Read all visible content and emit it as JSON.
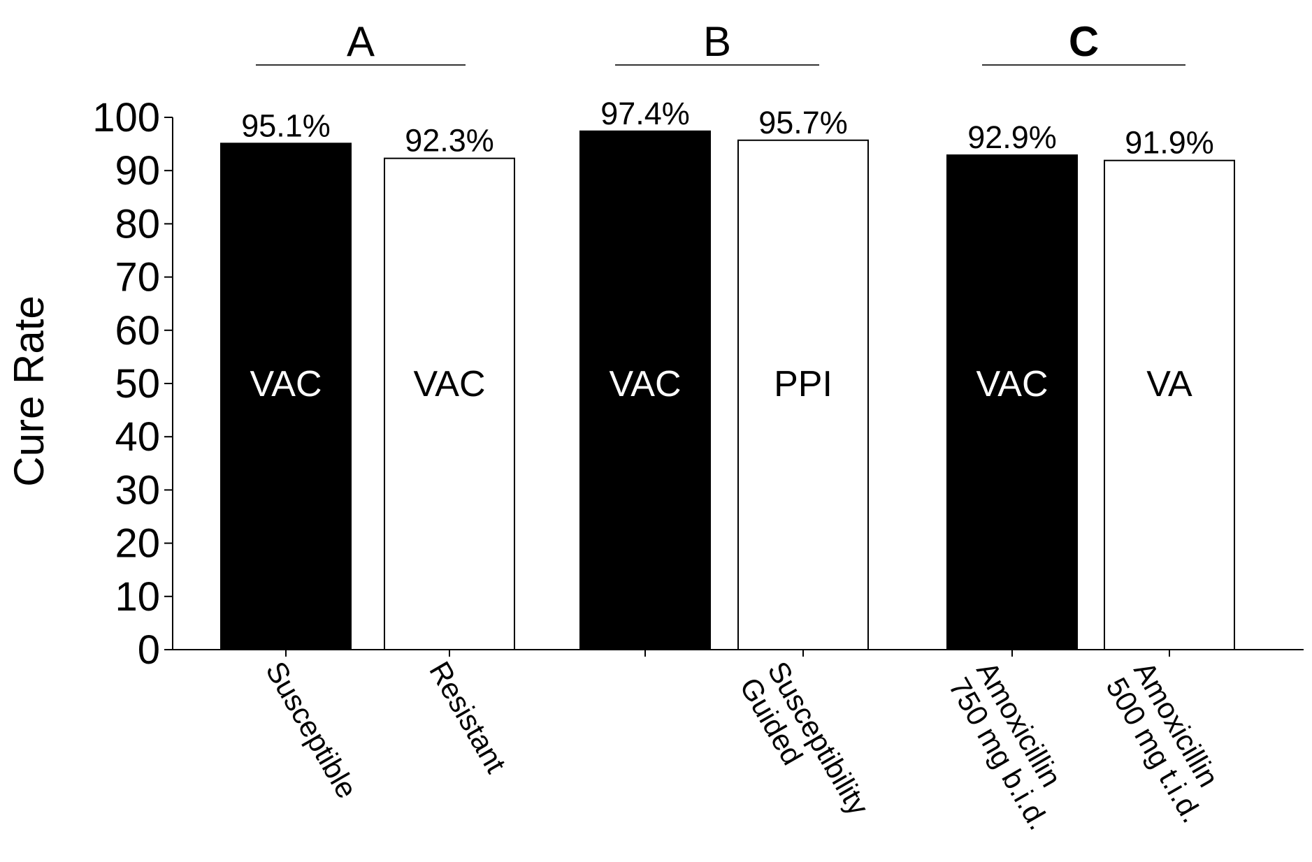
{
  "chart_data": {
    "type": "bar",
    "y_label": "Cure Rate",
    "groups": [
      {
        "label": "A",
        "from": 0,
        "to": 1
      },
      {
        "label": "B",
        "from": 2,
        "to": 3
      },
      {
        "label": "C",
        "from": 4,
        "to": 5
      }
    ],
    "categories": [
      [
        "Susceptible"
      ],
      [
        "Resistant"
      ],
      null,
      [
        "Susceptibility",
        "Guided"
      ],
      [
        "Amoxicillin",
        "750 mg b.i.d."
      ],
      [
        "Amoxicillin",
        "500 mg t.i.d."
      ]
    ],
    "values": [
      95.1,
      92.3,
      97.4,
      95.7,
      92.9,
      91.9
    ],
    "value_labels": [
      "95.1%",
      "92.3%",
      "97.4%",
      "95.7%",
      "92.9%",
      "91.9%"
    ],
    "bar_labels": [
      "VAC",
      "VAC",
      "VAC",
      "PPI",
      "VAC",
      "VA"
    ],
    "colors": [
      "#000000",
      "#ffffff",
      "#000000",
      "#ffffff",
      "#000000",
      "#ffffff"
    ],
    "ylim": [
      0,
      100
    ],
    "yticks": [
      0,
      10,
      20,
      30,
      40,
      50,
      60,
      70,
      80,
      90,
      100
    ]
  }
}
